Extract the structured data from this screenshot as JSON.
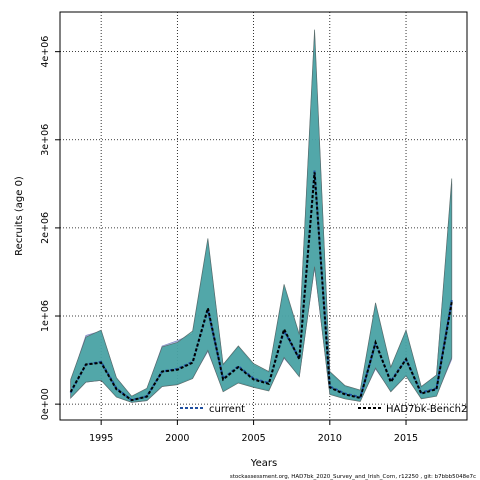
{
  "chart_data": {
    "type": "line",
    "title": "",
    "xlabel": "Years",
    "ylabel": "Recruits (age 0)",
    "xlim": [
      1992.3,
      2019.0
    ],
    "ylim": [
      -180000,
      4450000
    ],
    "x_ticks": [
      1995,
      2000,
      2005,
      2010,
      2015
    ],
    "x_tick_labels": [
      "1995",
      "2000",
      "2005",
      "2010",
      "2015"
    ],
    "y_ticks": [
      0,
      1000000,
      2000000,
      3000000,
      4000000
    ],
    "y_tick_labels": [
      "0e+00",
      "1e+06",
      "2e+06",
      "3e+06",
      "4e+06"
    ],
    "grid": true,
    "years": [
      1993,
      1994,
      1995,
      1996,
      1997,
      1998,
      1999,
      2000,
      2001,
      2002,
      2003,
      2004,
      2005,
      2006,
      2007,
      2008,
      2009,
      2010,
      2011,
      2012,
      2013,
      2014,
      2015,
      2016,
      2017,
      2018
    ],
    "series": [
      {
        "name": "current",
        "line_color": "#1f4fa0",
        "fill_color": "#9aa4d6",
        "values": [
          130000,
          450000,
          480000,
          180000,
          45000,
          90000,
          370000,
          400000,
          480000,
          1070000,
          290000,
          430000,
          290000,
          240000,
          830000,
          520000,
          2650000,
          200000,
          120000,
          80000,
          690000,
          260000,
          510000,
          130000,
          180000,
          1180000
        ],
        "lower": [
          70000,
          250000,
          270000,
          90000,
          20000,
          40000,
          200000,
          230000,
          300000,
          600000,
          150000,
          250000,
          200000,
          160000,
          520000,
          320000,
          1550000,
          120000,
          70000,
          40000,
          400000,
          150000,
          330000,
          70000,
          100000,
          510000
        ],
        "upper": [
          260000,
          780000,
          830000,
          300000,
          80000,
          170000,
          660000,
          720000,
          800000,
          1850000,
          440000,
          650000,
          440000,
          360000,
          1330000,
          780000,
          4190000,
          360000,
          200000,
          150000,
          1120000,
          410000,
          830000,
          190000,
          330000,
          2500000
        ]
      },
      {
        "name": "HAD7bk-Bench2",
        "line_color": "#000000",
        "fill_color": "#3aa39b",
        "values": [
          140000,
          450000,
          470000,
          170000,
          45000,
          85000,
          370000,
          390000,
          470000,
          1090000,
          280000,
          420000,
          280000,
          230000,
          850000,
          510000,
          2630000,
          190000,
          110000,
          70000,
          700000,
          250000,
          510000,
          120000,
          170000,
          1160000
        ],
        "lower": [
          70000,
          250000,
          270000,
          80000,
          20000,
          40000,
          200000,
          220000,
          290000,
          610000,
          140000,
          240000,
          190000,
          150000,
          530000,
          310000,
          1560000,
          110000,
          60000,
          30000,
          410000,
          140000,
          320000,
          60000,
          90000,
          530000
        ],
        "upper": [
          280000,
          760000,
          840000,
          300000,
          90000,
          180000,
          650000,
          700000,
          830000,
          1880000,
          450000,
          660000,
          460000,
          370000,
          1360000,
          790000,
          4250000,
          370000,
          210000,
          160000,
          1150000,
          420000,
          840000,
          200000,
          330000,
          2560000
        ]
      }
    ],
    "legend_placement": "bottom"
  },
  "footer_text": "stockassessment.org, HAD7bk_2020_Survey_and_Irish_Corn, r12250 , git: b7bbb5048e7c"
}
